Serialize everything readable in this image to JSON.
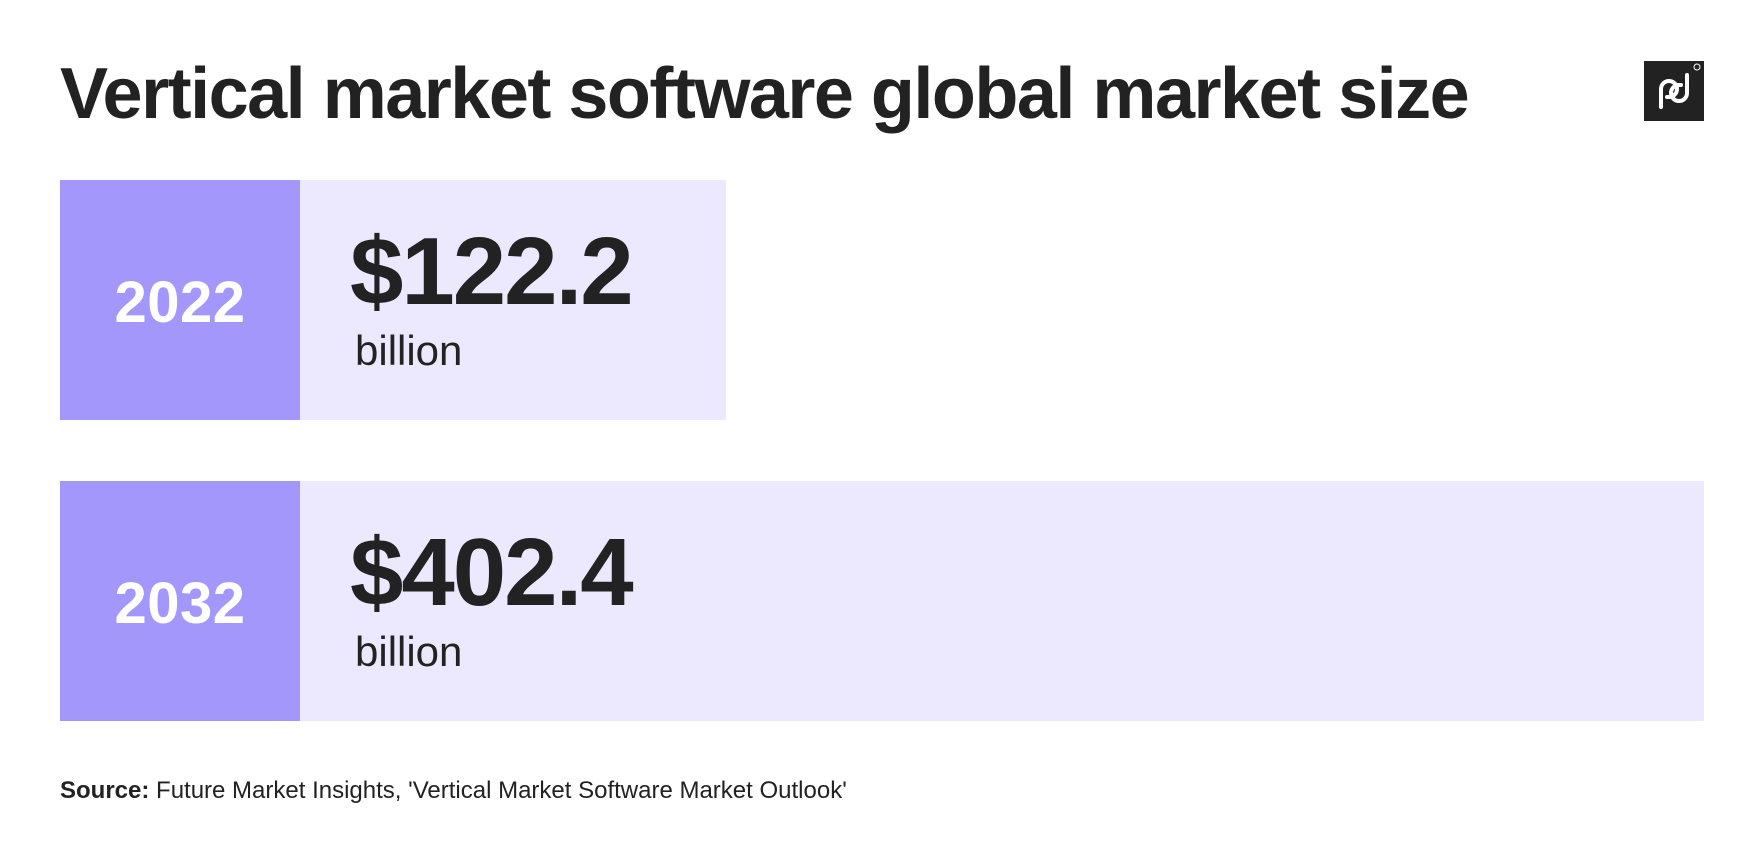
{
  "header": {
    "title": "Vertical market software global market size",
    "logo_icon": "pd-logo-icon"
  },
  "chart_data": {
    "type": "bar",
    "title": "Vertical market software global market size",
    "orientation": "horizontal",
    "categories": [
      "2022",
      "2032"
    ],
    "values": [
      122.2,
      402.4
    ],
    "value_labels": [
      "$122.2",
      "$402.4"
    ],
    "unit_labels": [
      "billion",
      "billion"
    ],
    "unit": "billion USD",
    "xlim": [
      0,
      402.4
    ],
    "grid": false,
    "legend": "none",
    "colors": {
      "year_box": "#a397fc",
      "bar_fill": "#ece8fd",
      "text": "#222222",
      "year_text": "#ffffff"
    }
  },
  "footer": {
    "source_prefix": "Source:",
    "source_text": " Future Market Insights, 'Vertical Market Software Market Outlook'"
  }
}
